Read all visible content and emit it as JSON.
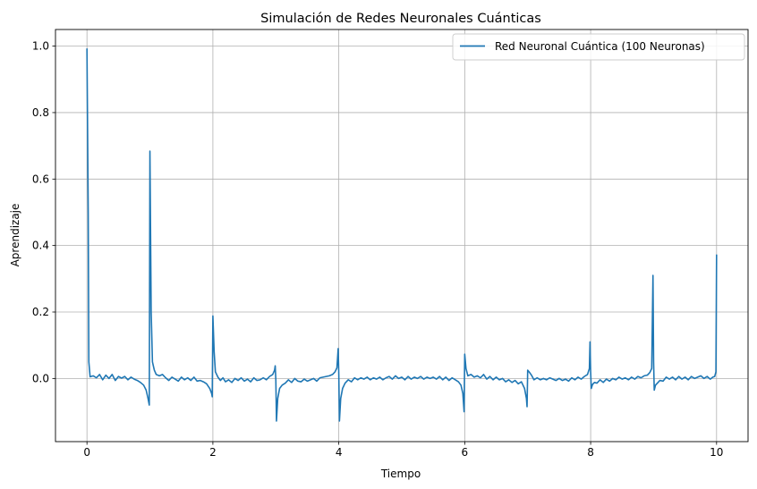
{
  "chart_data": {
    "type": "line",
    "title": "Simulación de Redes Neuronales Cuánticas",
    "xlabel": "Tiempo",
    "ylabel": "Aprendizaje",
    "xlim": [
      -0.5,
      10.5
    ],
    "ylim": [
      -0.19,
      1.05
    ],
    "xticks": [
      0,
      2,
      4,
      6,
      8,
      10
    ],
    "xtick_labels": [
      "0",
      "2",
      "4",
      "6",
      "8",
      "10"
    ],
    "yticks": [
      0.0,
      0.2,
      0.4,
      0.6,
      0.8,
      1.0
    ],
    "ytick_labels": [
      "0.0",
      "0.2",
      "0.4",
      "0.6",
      "0.8",
      "1.0"
    ],
    "grid": true,
    "legend_position": "upper right",
    "series": [
      {
        "name": "Red Neuronal Cuántica (100 Neuronas)",
        "color": "#1f77b4",
        "points": [
          [
            0.0,
            0.993
          ],
          [
            0.02,
            0.5
          ],
          [
            0.03,
            0.05
          ],
          [
            0.05,
            0.005
          ],
          [
            0.1,
            0.008
          ],
          [
            0.15,
            0.002
          ],
          [
            0.2,
            0.012
          ],
          [
            0.25,
            -0.004
          ],
          [
            0.3,
            0.01
          ],
          [
            0.35,
            0.0
          ],
          [
            0.4,
            0.012
          ],
          [
            0.45,
            -0.006
          ],
          [
            0.5,
            0.006
          ],
          [
            0.55,
            0.001
          ],
          [
            0.6,
            0.006
          ],
          [
            0.65,
            -0.004
          ],
          [
            0.7,
            0.004
          ],
          [
            0.75,
            -0.002
          ],
          [
            0.8,
            -0.006
          ],
          [
            0.85,
            -0.012
          ],
          [
            0.9,
            -0.02
          ],
          [
            0.94,
            -0.035
          ],
          [
            0.97,
            -0.06
          ],
          [
            0.99,
            -0.08
          ],
          [
            1.0,
            0.684
          ],
          [
            1.02,
            0.2
          ],
          [
            1.04,
            0.05
          ],
          [
            1.07,
            0.025
          ],
          [
            1.1,
            0.012
          ],
          [
            1.15,
            0.008
          ],
          [
            1.2,
            0.012
          ],
          [
            1.25,
            0.002
          ],
          [
            1.3,
            -0.006
          ],
          [
            1.35,
            0.004
          ],
          [
            1.4,
            -0.002
          ],
          [
            1.45,
            -0.008
          ],
          [
            1.5,
            0.004
          ],
          [
            1.55,
            -0.004
          ],
          [
            1.6,
            0.002
          ],
          [
            1.65,
            -0.006
          ],
          [
            1.7,
            0.004
          ],
          [
            1.75,
            -0.008
          ],
          [
            1.8,
            -0.006
          ],
          [
            1.85,
            -0.01
          ],
          [
            1.9,
            -0.016
          ],
          [
            1.95,
            -0.03
          ],
          [
            1.98,
            -0.045
          ],
          [
            1.99,
            -0.055
          ],
          [
            2.0,
            0.188
          ],
          [
            2.02,
            0.08
          ],
          [
            2.04,
            0.02
          ],
          [
            2.08,
            0.004
          ],
          [
            2.12,
            -0.006
          ],
          [
            2.16,
            0.002
          ],
          [
            2.2,
            -0.01
          ],
          [
            2.25,
            -0.004
          ],
          [
            2.3,
            -0.012
          ],
          [
            2.35,
            0.0
          ],
          [
            2.4,
            -0.006
          ],
          [
            2.45,
            0.002
          ],
          [
            2.5,
            -0.008
          ],
          [
            2.55,
            -0.002
          ],
          [
            2.6,
            -0.01
          ],
          [
            2.65,
            0.002
          ],
          [
            2.7,
            -0.006
          ],
          [
            2.75,
            -0.004
          ],
          [
            2.8,
            0.002
          ],
          [
            2.85,
            -0.004
          ],
          [
            2.9,
            0.006
          ],
          [
            2.95,
            0.012
          ],
          [
            2.98,
            0.025
          ],
          [
            2.99,
            0.038
          ],
          [
            3.0,
            -0.005
          ],
          [
            3.01,
            -0.128
          ],
          [
            3.03,
            -0.06
          ],
          [
            3.06,
            -0.03
          ],
          [
            3.1,
            -0.02
          ],
          [
            3.15,
            -0.014
          ],
          [
            3.2,
            -0.004
          ],
          [
            3.25,
            -0.012
          ],
          [
            3.3,
            0.0
          ],
          [
            3.35,
            -0.008
          ],
          [
            3.4,
            -0.01
          ],
          [
            3.45,
            -0.002
          ],
          [
            3.5,
            -0.008
          ],
          [
            3.55,
            -0.004
          ],
          [
            3.6,
            0.0
          ],
          [
            3.65,
            -0.008
          ],
          [
            3.7,
            0.002
          ],
          [
            3.75,
            0.004
          ],
          [
            3.8,
            0.006
          ],
          [
            3.85,
            0.008
          ],
          [
            3.9,
            0.012
          ],
          [
            3.94,
            0.02
          ],
          [
            3.97,
            0.032
          ],
          [
            3.99,
            0.09
          ],
          [
            4.0,
            0.01
          ],
          [
            4.01,
            -0.128
          ],
          [
            4.03,
            -0.06
          ],
          [
            4.06,
            -0.03
          ],
          [
            4.1,
            -0.014
          ],
          [
            4.15,
            -0.004
          ],
          [
            4.2,
            -0.01
          ],
          [
            4.25,
            0.002
          ],
          [
            4.3,
            -0.004
          ],
          [
            4.35,
            0.002
          ],
          [
            4.4,
            -0.002
          ],
          [
            4.45,
            0.004
          ],
          [
            4.5,
            -0.004
          ],
          [
            4.55,
            0.002
          ],
          [
            4.6,
            -0.002
          ],
          [
            4.65,
            0.004
          ],
          [
            4.7,
            -0.004
          ],
          [
            4.75,
            0.002
          ],
          [
            4.8,
            0.006
          ],
          [
            4.85,
            -0.002
          ],
          [
            4.9,
            0.008
          ],
          [
            4.95,
            0.0
          ],
          [
            5.0,
            0.004
          ],
          [
            5.05,
            -0.004
          ],
          [
            5.1,
            0.006
          ],
          [
            5.15,
            -0.002
          ],
          [
            5.2,
            0.004
          ],
          [
            5.25,
            0.0
          ],
          [
            5.3,
            0.006
          ],
          [
            5.35,
            -0.002
          ],
          [
            5.4,
            0.004
          ],
          [
            5.45,
            0.0
          ],
          [
            5.5,
            0.004
          ],
          [
            5.55,
            -0.002
          ],
          [
            5.6,
            0.006
          ],
          [
            5.65,
            -0.004
          ],
          [
            5.7,
            0.004
          ],
          [
            5.75,
            -0.006
          ],
          [
            5.8,
            0.002
          ],
          [
            5.85,
            -0.004
          ],
          [
            5.9,
            -0.01
          ],
          [
            5.94,
            -0.02
          ],
          [
            5.97,
            -0.045
          ],
          [
            5.99,
            -0.1
          ],
          [
            6.0,
            0.073
          ],
          [
            6.02,
            0.03
          ],
          [
            6.05,
            0.008
          ],
          [
            6.1,
            0.012
          ],
          [
            6.15,
            0.004
          ],
          [
            6.2,
            0.008
          ],
          [
            6.25,
            0.002
          ],
          [
            6.3,
            0.012
          ],
          [
            6.35,
            -0.002
          ],
          [
            6.4,
            0.006
          ],
          [
            6.45,
            -0.004
          ],
          [
            6.5,
            0.004
          ],
          [
            6.55,
            -0.004
          ],
          [
            6.6,
            0.0
          ],
          [
            6.65,
            -0.01
          ],
          [
            6.7,
            -0.004
          ],
          [
            6.75,
            -0.012
          ],
          [
            6.8,
            -0.006
          ],
          [
            6.85,
            -0.016
          ],
          [
            6.9,
            -0.01
          ],
          [
            6.95,
            -0.03
          ],
          [
            6.98,
            -0.06
          ],
          [
            6.99,
            -0.085
          ],
          [
            7.0,
            0.025
          ],
          [
            7.03,
            0.018
          ],
          [
            7.06,
            0.01
          ],
          [
            7.1,
            -0.004
          ],
          [
            7.15,
            0.002
          ],
          [
            7.2,
            -0.004
          ],
          [
            7.25,
            0.0
          ],
          [
            7.3,
            -0.004
          ],
          [
            7.35,
            0.002
          ],
          [
            7.4,
            -0.002
          ],
          [
            7.45,
            -0.006
          ],
          [
            7.5,
            0.0
          ],
          [
            7.55,
            -0.006
          ],
          [
            7.6,
            -0.002
          ],
          [
            7.65,
            -0.008
          ],
          [
            7.7,
            0.002
          ],
          [
            7.75,
            -0.004
          ],
          [
            7.8,
            0.004
          ],
          [
            7.85,
            -0.002
          ],
          [
            7.9,
            0.006
          ],
          [
            7.95,
            0.012
          ],
          [
            7.98,
            0.03
          ],
          [
            7.99,
            0.11
          ],
          [
            8.0,
            0.02
          ],
          [
            8.01,
            -0.03
          ],
          [
            8.03,
            -0.018
          ],
          [
            8.06,
            -0.012
          ],
          [
            8.1,
            -0.014
          ],
          [
            8.15,
            -0.004
          ],
          [
            8.2,
            -0.012
          ],
          [
            8.25,
            -0.002
          ],
          [
            8.3,
            -0.008
          ],
          [
            8.35,
            0.0
          ],
          [
            8.4,
            -0.004
          ],
          [
            8.45,
            0.004
          ],
          [
            8.5,
            -0.002
          ],
          [
            8.55,
            0.002
          ],
          [
            8.6,
            -0.004
          ],
          [
            8.65,
            0.004
          ],
          [
            8.7,
            -0.002
          ],
          [
            8.75,
            0.006
          ],
          [
            8.8,
            0.002
          ],
          [
            8.85,
            0.008
          ],
          [
            8.9,
            0.01
          ],
          [
            8.94,
            0.018
          ],
          [
            8.97,
            0.03
          ],
          [
            8.99,
            0.31
          ],
          [
            9.0,
            0.05
          ],
          [
            9.01,
            -0.035
          ],
          [
            9.03,
            -0.02
          ],
          [
            9.06,
            -0.014
          ],
          [
            9.1,
            -0.006
          ],
          [
            9.15,
            -0.008
          ],
          [
            9.2,
            0.004
          ],
          [
            9.25,
            -0.002
          ],
          [
            9.3,
            0.004
          ],
          [
            9.35,
            -0.004
          ],
          [
            9.4,
            0.006
          ],
          [
            9.45,
            -0.002
          ],
          [
            9.5,
            0.004
          ],
          [
            9.55,
            -0.004
          ],
          [
            9.6,
            0.006
          ],
          [
            9.65,
            0.0
          ],
          [
            9.7,
            0.004
          ],
          [
            9.75,
            0.008
          ],
          [
            9.8,
            0.0
          ],
          [
            9.85,
            0.006
          ],
          [
            9.9,
            -0.002
          ],
          [
            9.94,
            0.004
          ],
          [
            9.97,
            0.006
          ],
          [
            9.99,
            0.02
          ],
          [
            10.0,
            0.373
          ]
        ]
      }
    ]
  }
}
